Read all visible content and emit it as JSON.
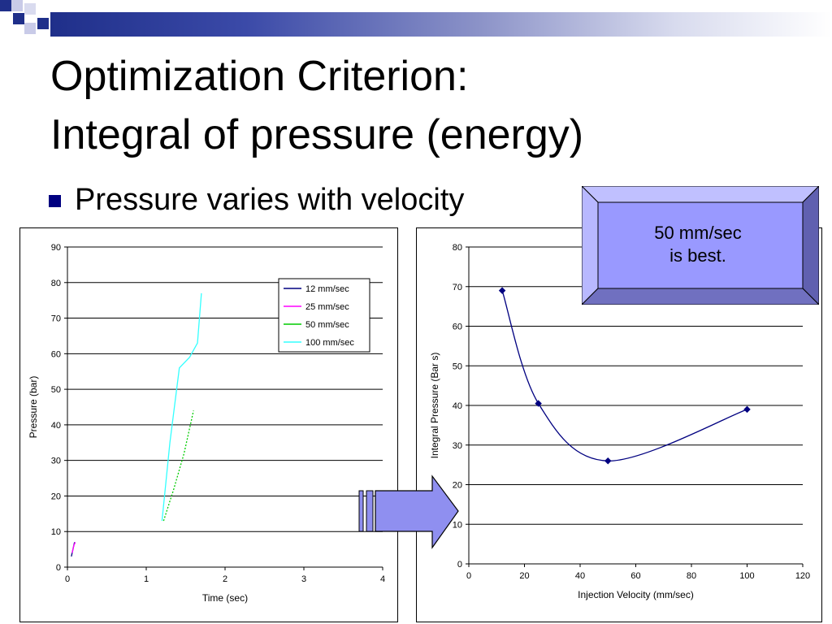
{
  "slide": {
    "title_line1": "Optimization Criterion:",
    "title_line2": "Integral of pressure (energy)",
    "bullet": "Pressure varies with velocity"
  },
  "callout": {
    "line1": "50 mm/sec",
    "line2": "is best."
  },
  "colors": {
    "accent": "#000080",
    "bevel_face": "#9999ff",
    "arrow_fill": "#8f8ff0"
  },
  "chart_data": [
    {
      "type": "line",
      "title": "",
      "xlabel": "Time (sec)",
      "ylabel": "Pressure (bar)",
      "xlim": [
        0,
        4
      ],
      "ylim": [
        0,
        90
      ],
      "xticks": [
        0,
        1,
        2,
        3,
        4
      ],
      "yticks": [
        0,
        10,
        20,
        30,
        40,
        50,
        60,
        70,
        80,
        90
      ],
      "grid": "horizontal",
      "legend_position": "top-right",
      "series": [
        {
          "name": "12 mm/sec",
          "color": "#000080",
          "x": [
            0.05,
            0.07,
            0.09
          ],
          "y": [
            3,
            5,
            7
          ]
        },
        {
          "name": "25 mm/sec",
          "color": "#ff00ff",
          "x": [
            0.06,
            0.08,
            0.1
          ],
          "y": [
            4,
            6,
            7
          ]
        },
        {
          "name": "50 mm/sec",
          "color": "#00cc00",
          "x": [
            1.22,
            1.35,
            1.48,
            1.6
          ],
          "y": [
            13,
            22,
            32,
            44
          ]
        },
        {
          "name": "100 mm/sec",
          "color": "#33ffff",
          "x": [
            1.2,
            1.3,
            1.42,
            1.55,
            1.65,
            1.7
          ],
          "y": [
            13,
            35,
            56,
            59,
            63,
            77
          ]
        }
      ]
    },
    {
      "type": "line",
      "title": "",
      "xlabel": "Injection Velocity (mm/sec)",
      "ylabel": "Integral Pressure (Bar s)",
      "xlim": [
        0,
        120
      ],
      "ylim": [
        0,
        80
      ],
      "xticks": [
        0,
        20,
        40,
        60,
        80,
        100,
        120
      ],
      "yticks": [
        0,
        10,
        20,
        30,
        40,
        50,
        60,
        70,
        80
      ],
      "grid": "horizontal",
      "x": [
        12,
        25,
        50,
        100
      ],
      "series": [
        {
          "name": "",
          "color": "#000080",
          "values": [
            69,
            40.5,
            26,
            39
          ]
        }
      ]
    }
  ]
}
